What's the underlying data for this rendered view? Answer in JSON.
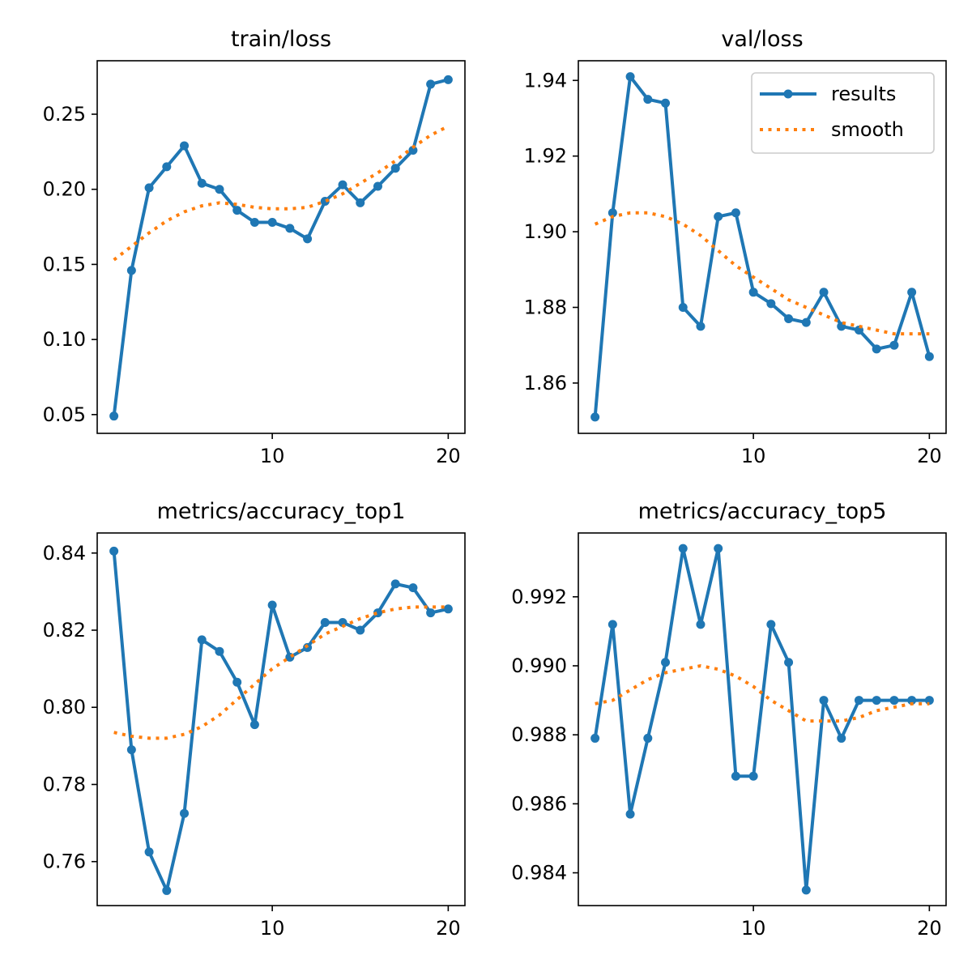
{
  "colors": {
    "results": "#1f77b4",
    "smooth": "#ff7f0e",
    "axes": "#000000",
    "legend_border": "#cccccc"
  },
  "chart_data": [
    {
      "type": "line",
      "title": "train/loss",
      "x": [
        1,
        2,
        3,
        4,
        5,
        6,
        7,
        8,
        9,
        10,
        11,
        12,
        13,
        14,
        15,
        16,
        17,
        18,
        19,
        20
      ],
      "xlim": [
        0.05,
        20.95
      ],
      "ylim": [
        0.0375,
        0.2856
      ],
      "xticks": [
        10,
        20
      ],
      "yticks": [
        0.05,
        0.1,
        0.15,
        0.2,
        0.25
      ],
      "ytick_labels": [
        "0.05",
        "0.10",
        "0.15",
        "0.20",
        "0.25"
      ],
      "grid": false,
      "series": [
        {
          "name": "results",
          "style": "line-markers",
          "values": [
            0.049,
            0.146,
            0.201,
            0.215,
            0.229,
            0.204,
            0.2,
            0.186,
            0.178,
            0.178,
            0.174,
            0.167,
            0.192,
            0.203,
            0.191,
            0.202,
            0.214,
            0.226,
            0.27,
            0.273
          ]
        },
        {
          "name": "smooth",
          "style": "dotted",
          "values": [
            0.153,
            0.162,
            0.171,
            0.179,
            0.185,
            0.189,
            0.191,
            0.19,
            0.188,
            0.187,
            0.187,
            0.188,
            0.192,
            0.197,
            0.204,
            0.211,
            0.219,
            0.228,
            0.236,
            0.242
          ]
        }
      ]
    },
    {
      "type": "line",
      "title": "val/loss",
      "x": [
        1,
        2,
        3,
        4,
        5,
        6,
        7,
        8,
        9,
        10,
        11,
        12,
        13,
        14,
        15,
        16,
        17,
        18,
        19,
        20
      ],
      "xlim": [
        0.05,
        20.95
      ],
      "ylim": [
        1.8467,
        1.9452
      ],
      "xticks": [
        10,
        20
      ],
      "yticks": [
        1.86,
        1.88,
        1.9,
        1.92,
        1.94
      ],
      "ytick_labels": [
        "1.86",
        "1.88",
        "1.90",
        "1.92",
        "1.94"
      ],
      "grid": false,
      "legend": {
        "placement": "top-right",
        "entries": [
          "results",
          "smooth"
        ]
      },
      "series": [
        {
          "name": "results",
          "style": "line-markers",
          "values": [
            1.851,
            1.905,
            1.941,
            1.935,
            1.934,
            1.88,
            1.875,
            1.904,
            1.905,
            1.884,
            1.881,
            1.877,
            1.876,
            1.884,
            1.875,
            1.874,
            1.869,
            1.87,
            1.884,
            1.867
          ]
        },
        {
          "name": "smooth",
          "style": "dotted",
          "values": [
            1.902,
            1.904,
            1.905,
            1.905,
            1.904,
            1.902,
            1.899,
            1.895,
            1.891,
            1.888,
            1.885,
            1.882,
            1.88,
            1.878,
            1.876,
            1.875,
            1.874,
            1.873,
            1.873,
            1.873
          ]
        }
      ]
    },
    {
      "type": "line",
      "title": "metrics/accuracy_top1",
      "x": [
        1,
        2,
        3,
        4,
        5,
        6,
        7,
        8,
        9,
        10,
        11,
        12,
        13,
        14,
        15,
        16,
        17,
        18,
        19,
        20
      ],
      "xlim": [
        0.05,
        20.95
      ],
      "ylim": [
        0.7486,
        0.8452
      ],
      "xticks": [
        10,
        20
      ],
      "yticks": [
        0.76,
        0.78,
        0.8,
        0.82,
        0.84
      ],
      "ytick_labels": [
        "0.76",
        "0.78",
        "0.80",
        "0.82",
        "0.84"
      ],
      "grid": false,
      "series": [
        {
          "name": "results",
          "style": "line-markers",
          "values": [
            0.8405,
            0.789,
            0.7625,
            0.7525,
            0.7725,
            0.8175,
            0.8145,
            0.8065,
            0.7955,
            0.8265,
            0.813,
            0.8155,
            0.822,
            0.822,
            0.82,
            0.8245,
            0.832,
            0.831,
            0.8245,
            0.8255
          ]
        },
        {
          "name": "smooth",
          "style": "dotted",
          "values": [
            0.7935,
            0.7925,
            0.792,
            0.792,
            0.793,
            0.795,
            0.798,
            0.802,
            0.806,
            0.81,
            0.813,
            0.816,
            0.819,
            0.821,
            0.823,
            0.8245,
            0.8255,
            0.826,
            0.826,
            0.826
          ]
        }
      ]
    },
    {
      "type": "line",
      "title": "metrics/accuracy_top5",
      "x": [
        1,
        2,
        3,
        4,
        5,
        6,
        7,
        8,
        9,
        10,
        11,
        12,
        13,
        14,
        15,
        16,
        17,
        18,
        19,
        20
      ],
      "xlim": [
        0.05,
        20.95
      ],
      "ylim": [
        0.98305,
        0.99385
      ],
      "xticks": [
        10,
        20
      ],
      "yticks": [
        0.984,
        0.986,
        0.988,
        0.99,
        0.992
      ],
      "ytick_labels": [
        "0.984",
        "0.986",
        "0.988",
        "0.990",
        "0.992"
      ],
      "grid": false,
      "series": [
        {
          "name": "results",
          "style": "line-markers",
          "values": [
            0.9879,
            0.9912,
            0.9857,
            0.9879,
            0.9901,
            0.9934,
            0.9912,
            0.9934,
            0.9868,
            0.9868,
            0.9912,
            0.9901,
            0.9835,
            0.989,
            0.9879,
            0.989,
            0.989,
            0.989,
            0.989,
            0.989
          ]
        },
        {
          "name": "smooth",
          "style": "dotted",
          "values": [
            0.9889,
            0.989,
            0.9893,
            0.9896,
            0.9898,
            0.9899,
            0.99,
            0.9899,
            0.9897,
            0.9894,
            0.989,
            0.9887,
            0.9884,
            0.9884,
            0.9884,
            0.9885,
            0.9887,
            0.9888,
            0.9889,
            0.9889
          ]
        }
      ]
    }
  ]
}
